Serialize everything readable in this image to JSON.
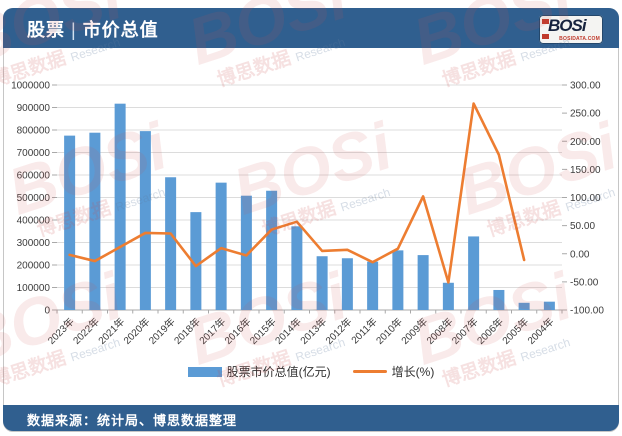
{
  "header": {
    "title": {
      "left": "股票",
      "sep": "|",
      "right": "市价总值"
    },
    "logo": {
      "name": "BOSi",
      "site": "BOSIDATA.COM"
    }
  },
  "footer": {
    "source": "数据来源：统计局、博思数据整理"
  },
  "watermark": {
    "logo": "BOSi",
    "cn": "博思数据",
    "en": "Research"
  },
  "colors": {
    "header_bar": "#305F8F",
    "bar_series": "#5B9BD5",
    "line_series": "#ED7D31",
    "gridline": "#dcdcdc",
    "axis_line": "#a9a9a9"
  },
  "chart_data": {
    "type": "bar",
    "subtype": "combo-bar-line",
    "title": "股票 | 市价总值",
    "grid": true,
    "legend_position": "bottom",
    "categories": [
      "2023年",
      "2022年",
      "2021年",
      "2020年",
      "2019年",
      "2018年",
      "2017年",
      "2016年",
      "2015年",
      "2014年",
      "2013年",
      "2012年",
      "2011年",
      "2010年",
      "2009年",
      "2008年",
      "2007年",
      "2006年",
      "2005年",
      "2004年"
    ],
    "series": [
      {
        "name": "股票市价总值(亿元)",
        "type": "bar",
        "axis": "left",
        "color": "#5B9BD5",
        "values": [
          775000,
          788000,
          917000,
          795000,
          590000,
          435000,
          566000,
          508000,
          530000,
          372000,
          239000,
          230000,
          215000,
          265000,
          244000,
          121000,
          327000,
          89000,
          32000,
          37000
        ]
      },
      {
        "name": "增长(%)",
        "type": "line",
        "axis": "right",
        "color": "#ED7D31",
        "values": [
          -2,
          -13,
          12,
          37,
          36,
          -22,
          10,
          -3,
          43,
          57,
          5,
          7,
          -15,
          9,
          102,
          -51,
          267,
          176,
          -11,
          null
        ]
      }
    ],
    "left_axis": {
      "min": 0,
      "max": 1000000,
      "step": 100000,
      "labels": [
        "1000000",
        "900000",
        "800000",
        "700000",
        "600000",
        "500000",
        "400000",
        "300000",
        "200000",
        "100000",
        "0"
      ]
    },
    "right_axis": {
      "min": -100,
      "max": 300,
      "step": 50,
      "labels": [
        "300.00",
        "250.00",
        "200.00",
        "150.00",
        "100.00",
        "50.00",
        "0.00",
        "-50.00",
        "-100.00"
      ]
    }
  }
}
